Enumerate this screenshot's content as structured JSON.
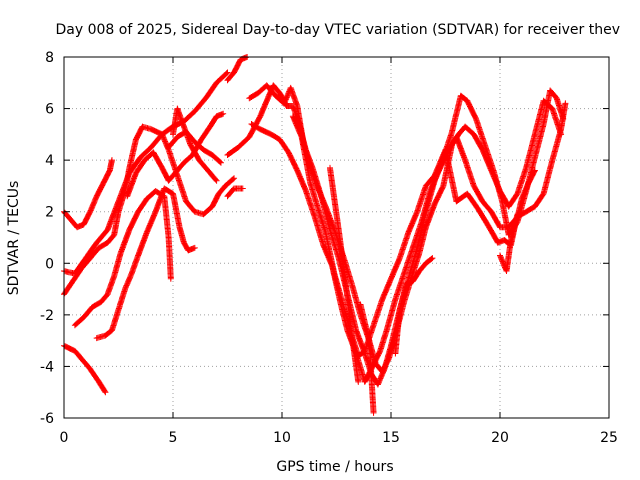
{
  "chart_data": {
    "type": "scatter",
    "title": "Day 008 of 2025, Sidereal Day-to-day VTEC variation (SDTVAR) for receiver thev",
    "xlabel": "GPS time / hours",
    "ylabel": "SDTVAR / TECUs",
    "xlim": [
      0,
      25
    ],
    "ylim": [
      -6,
      8
    ],
    "xticks": [
      0,
      5,
      10,
      15,
      20,
      25
    ],
    "yticks": [
      -6,
      -4,
      -2,
      0,
      2,
      4,
      6,
      8
    ],
    "grid": true,
    "marker": "plus",
    "color": "#ff0000",
    "series": [
      {
        "points": [
          [
            0,
            -0.3
          ],
          [
            0.5,
            -0.4
          ],
          [
            1.0,
            0.2
          ],
          [
            1.5,
            0.8
          ],
          [
            2.0,
            1.3
          ],
          [
            2.5,
            2.4
          ],
          [
            3.0,
            3.5
          ],
          [
            3.5,
            4.1
          ],
          [
            4.0,
            4.5
          ],
          [
            4.5,
            5.0
          ],
          [
            5.0,
            5.3
          ],
          [
            5.5,
            5.5
          ],
          [
            6.0,
            5.9
          ],
          [
            6.5,
            6.4
          ],
          [
            7.0,
            7.0
          ],
          [
            7.5,
            7.4
          ]
        ]
      },
      {
        "points": [
          [
            0,
            -3.2
          ],
          [
            0.5,
            -3.4
          ],
          [
            0.8,
            -3.7
          ],
          [
            1.2,
            -4.1
          ],
          [
            1.6,
            -4.6
          ],
          [
            1.9,
            -5.0
          ]
        ]
      },
      {
        "points": [
          [
            0,
            -1.2
          ],
          [
            0.4,
            -0.7
          ],
          [
            0.8,
            -0.2
          ],
          [
            1.2,
            0.2
          ],
          [
            1.6,
            0.6
          ],
          [
            2.0,
            0.8
          ],
          [
            2.3,
            1.1
          ],
          [
            2.5,
            2.0
          ],
          [
            2.8,
            2.8
          ],
          [
            3.0,
            3.7
          ],
          [
            3.3,
            4.8
          ],
          [
            3.6,
            5.3
          ],
          [
            4.0,
            5.2
          ],
          [
            4.5,
            5.0
          ],
          [
            4.8,
            4.4
          ],
          [
            5.2,
            3.4
          ],
          [
            5.6,
            2.4
          ],
          [
            6.0,
            2.0
          ],
          [
            6.4,
            1.9
          ],
          [
            6.8,
            2.2
          ],
          [
            7.1,
            2.7
          ],
          [
            7.4,
            3.0
          ],
          [
            7.8,
            3.3
          ]
        ]
      },
      {
        "points": [
          [
            0,
            2.0
          ],
          [
            0.3,
            1.7
          ],
          [
            0.6,
            1.4
          ],
          [
            0.9,
            1.5
          ],
          [
            1.2,
            2.0
          ],
          [
            1.5,
            2.6
          ],
          [
            1.8,
            3.1
          ],
          [
            2.1,
            3.6
          ],
          [
            2.2,
            4.0
          ]
        ]
      },
      {
        "points": [
          [
            0.5,
            -2.4
          ],
          [
            0.9,
            -2.1
          ],
          [
            1.3,
            -1.7
          ],
          [
            1.7,
            -1.5
          ],
          [
            2.0,
            -1.2
          ],
          [
            2.3,
            -0.5
          ],
          [
            2.6,
            0.4
          ],
          [
            3.0,
            1.3
          ],
          [
            3.4,
            2.0
          ],
          [
            3.8,
            2.5
          ],
          [
            4.2,
            2.8
          ],
          [
            4.6,
            2.6
          ],
          [
            4.8,
            1.0
          ],
          [
            4.9,
            -0.6
          ]
        ]
      },
      {
        "points": [
          [
            1.5,
            -2.9
          ],
          [
            1.9,
            -2.8
          ],
          [
            2.2,
            -2.6
          ],
          [
            2.5,
            -1.8
          ],
          [
            2.8,
            -1.0
          ],
          [
            3.1,
            -0.4
          ],
          [
            3.4,
            0.3
          ],
          [
            3.8,
            1.2
          ],
          [
            4.2,
            2.0
          ],
          [
            4.6,
            2.9
          ],
          [
            5.0,
            2.7
          ],
          [
            5.3,
            1.4
          ],
          [
            5.5,
            0.8
          ],
          [
            5.7,
            0.5
          ],
          [
            6.0,
            0.6
          ]
        ]
      },
      {
        "points": [
          [
            2.9,
            2.6
          ],
          [
            3.3,
            3.5
          ],
          [
            3.7,
            4.0
          ],
          [
            4.1,
            4.3
          ],
          [
            4.5,
            3.7
          ],
          [
            4.8,
            3.2
          ],
          [
            5.1,
            3.5
          ],
          [
            5.5,
            3.9
          ],
          [
            5.9,
            4.2
          ],
          [
            6.3,
            4.8
          ],
          [
            6.7,
            5.3
          ],
          [
            7.0,
            5.7
          ],
          [
            7.3,
            5.8
          ]
        ]
      },
      {
        "points": [
          [
            4.8,
            4.5
          ],
          [
            5.2,
            4.9
          ],
          [
            5.6,
            5.1
          ],
          [
            6.0,
            4.7
          ],
          [
            6.4,
            4.4
          ],
          [
            6.8,
            4.2
          ],
          [
            7.2,
            3.9
          ]
        ]
      },
      {
        "points": [
          [
            5.0,
            5.0
          ],
          [
            5.2,
            6.0
          ],
          [
            5.5,
            5.3
          ],
          [
            5.8,
            4.6
          ],
          [
            6.2,
            4.0
          ],
          [
            6.6,
            3.6
          ],
          [
            7.0,
            3.2
          ]
        ]
      },
      {
        "points": [
          [
            7.5,
            2.6
          ],
          [
            7.8,
            2.9
          ],
          [
            8.2,
            2.9
          ]
        ]
      },
      {
        "points": [
          [
            7.5,
            7.1
          ],
          [
            7.8,
            7.4
          ],
          [
            8.1,
            7.9
          ],
          [
            8.4,
            8.0
          ]
        ]
      },
      {
        "points": [
          [
            7.5,
            4.2
          ],
          [
            8.0,
            4.5
          ],
          [
            8.5,
            4.9
          ],
          [
            9.0,
            5.7
          ],
          [
            9.4,
            6.5
          ],
          [
            9.6,
            6.9
          ],
          [
            9.9,
            6.6
          ],
          [
            10.2,
            6.1
          ],
          [
            10.5,
            6.1
          ],
          [
            10.8,
            5.4
          ],
          [
            11.2,
            4.0
          ],
          [
            11.6,
            3.0
          ],
          [
            12.0,
            2.2
          ],
          [
            12.4,
            1.3
          ],
          [
            12.8,
            0.3
          ],
          [
            13.2,
            -0.8
          ],
          [
            13.6,
            -2.0
          ],
          [
            14.0,
            -3.0
          ],
          [
            14.3,
            -3.9
          ],
          [
            14.6,
            -4.2
          ],
          [
            14.9,
            -3.7
          ],
          [
            15.2,
            -2.8
          ],
          [
            15.6,
            -1.5
          ],
          [
            16.0,
            -0.4
          ],
          [
            16.3,
            0.4
          ],
          [
            16.6,
            1.4
          ],
          [
            17.0,
            2.3
          ],
          [
            17.4,
            3.0
          ],
          [
            17.8,
            4.6
          ],
          [
            18.1,
            5.0
          ],
          [
            18.4,
            5.3
          ],
          [
            18.8,
            5.0
          ],
          [
            19.2,
            4.4
          ],
          [
            19.6,
            3.6
          ],
          [
            20.0,
            2.8
          ],
          [
            20.4,
            2.2
          ],
          [
            20.8,
            2.7
          ],
          [
            21.2,
            3.7
          ],
          [
            21.6,
            5.0
          ],
          [
            22.0,
            6.3
          ],
          [
            22.4,
            6.0
          ],
          [
            22.8,
            5.0
          ]
        ]
      },
      {
        "points": [
          [
            8.5,
            6.4
          ],
          [
            8.9,
            6.6
          ],
          [
            9.3,
            6.9
          ],
          [
            9.7,
            6.5
          ],
          [
            10.1,
            6.2
          ],
          [
            10.4,
            6.8
          ],
          [
            10.7,
            6.1
          ],
          [
            11.0,
            4.6
          ],
          [
            11.4,
            3.7
          ],
          [
            11.8,
            2.6
          ],
          [
            12.2,
            1.3
          ],
          [
            12.6,
            0.2
          ],
          [
            13.0,
            -1.2
          ],
          [
            13.4,
            -2.6
          ],
          [
            13.8,
            -3.5
          ],
          [
            14.1,
            -4.3
          ],
          [
            14.4,
            -4.7
          ],
          [
            14.7,
            -4.1
          ],
          [
            15.0,
            -3.2
          ],
          [
            15.4,
            -1.8
          ],
          [
            15.8,
            -0.6
          ],
          [
            16.2,
            0.6
          ],
          [
            16.6,
            2.0
          ],
          [
            17.0,
            3.2
          ],
          [
            17.4,
            4.1
          ],
          [
            17.8,
            5.1
          ],
          [
            18.2,
            6.5
          ],
          [
            18.5,
            6.3
          ],
          [
            18.9,
            5.6
          ],
          [
            19.3,
            4.6
          ],
          [
            19.7,
            3.6
          ],
          [
            20.1,
            2.4
          ],
          [
            20.4,
            1.1
          ],
          [
            20.8,
            1.6
          ],
          [
            21.2,
            2.8
          ],
          [
            21.6,
            4.1
          ],
          [
            22.0,
            5.4
          ],
          [
            22.3,
            6.7
          ],
          [
            22.6,
            6.4
          ],
          [
            22.9,
            5.6
          ]
        ]
      },
      {
        "points": [
          [
            8.6,
            5.4
          ],
          [
            9.0,
            5.2
          ],
          [
            9.5,
            5.0
          ],
          [
            9.9,
            4.8
          ],
          [
            10.3,
            4.3
          ],
          [
            10.7,
            3.6
          ],
          [
            11.1,
            2.8
          ],
          [
            11.5,
            1.8
          ],
          [
            11.9,
            0.7
          ],
          [
            12.3,
            -0.1
          ],
          [
            12.7,
            -1.6
          ],
          [
            13.0,
            -2.6
          ],
          [
            13.4,
            -3.5
          ],
          [
            13.8,
            -4.6
          ],
          [
            14.1,
            -4.1
          ],
          [
            14.5,
            -3.4
          ],
          [
            14.8,
            -2.6
          ],
          [
            15.2,
            -1.4
          ],
          [
            15.6,
            -0.4
          ],
          [
            16.0,
            0.6
          ],
          [
            16.4,
            1.6
          ],
          [
            16.8,
            2.8
          ],
          [
            17.2,
            3.6
          ],
          [
            17.6,
            4.3
          ],
          [
            18.0,
            4.9
          ],
          [
            18.4,
            4.0
          ],
          [
            18.8,
            3.0
          ],
          [
            19.2,
            2.4
          ],
          [
            19.6,
            2.0
          ],
          [
            20.0,
            1.4
          ],
          [
            20.4,
            1.4
          ],
          [
            20.8,
            1.8
          ],
          [
            21.2,
            2.0
          ],
          [
            21.6,
            2.2
          ],
          [
            22.0,
            2.7
          ],
          [
            22.4,
            4.0
          ],
          [
            22.8,
            5.2
          ],
          [
            23.0,
            6.2
          ]
        ]
      },
      {
        "points": [
          [
            10.5,
            5.7
          ],
          [
            10.9,
            4.9
          ],
          [
            11.3,
            3.1
          ],
          [
            11.7,
            2.0
          ],
          [
            12.0,
            1.2
          ],
          [
            12.4,
            -0.4
          ],
          [
            12.8,
            -1.6
          ],
          [
            13.2,
            -2.8
          ],
          [
            13.5,
            -3.6
          ],
          [
            13.8,
            -3.4
          ],
          [
            14.2,
            -2.4
          ],
          [
            14.6,
            -1.4
          ],
          [
            15.0,
            -0.6
          ],
          [
            15.4,
            0.2
          ],
          [
            15.8,
            1.2
          ],
          [
            16.2,
            2.0
          ],
          [
            16.6,
            3.0
          ],
          [
            17.0,
            3.4
          ],
          [
            17.5,
            4.4
          ],
          [
            18.0,
            2.4
          ],
          [
            18.5,
            2.7
          ],
          [
            19.0,
            2.1
          ],
          [
            19.5,
            1.4
          ],
          [
            19.9,
            0.8
          ],
          [
            20.2,
            0.9
          ],
          [
            20.5,
            0.7
          ],
          [
            20.8,
            1.9
          ]
        ]
      },
      {
        "points": [
          [
            12.2,
            3.7
          ],
          [
            12.6,
            1.3
          ],
          [
            12.9,
            -0.6
          ],
          [
            13.2,
            -2.8
          ],
          [
            13.5,
            -4.6
          ]
        ]
      },
      {
        "points": [
          [
            13.6,
            -1.6
          ],
          [
            14.0,
            -3.0
          ],
          [
            14.2,
            -5.8
          ]
        ]
      },
      {
        "points": [
          [
            15.2,
            -3.5
          ],
          [
            15.4,
            -1.8
          ],
          [
            15.7,
            -0.8
          ],
          [
            16.0,
            -0.7
          ],
          [
            16.3,
            -0.3
          ],
          [
            16.6,
            0.0
          ],
          [
            16.9,
            0.2
          ]
        ]
      },
      {
        "points": [
          [
            20.0,
            0.3
          ],
          [
            20.3,
            -0.3
          ],
          [
            20.5,
            0.9
          ],
          [
            20.8,
            1.8
          ],
          [
            21.0,
            2.5
          ],
          [
            21.3,
            3.1
          ],
          [
            21.6,
            3.6
          ]
        ]
      }
    ]
  }
}
